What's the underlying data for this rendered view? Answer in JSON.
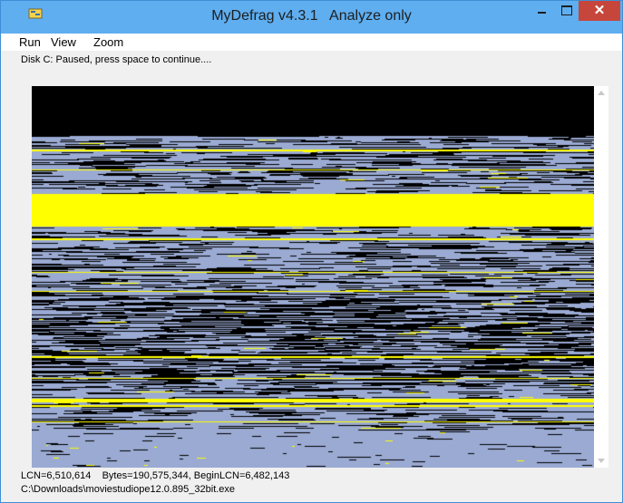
{
  "window": {
    "title": "MyDefrag v4.3.1   Analyze only",
    "close_glyph": "✕"
  },
  "menu": {
    "items": [
      "Run",
      "View",
      "Zoom"
    ]
  },
  "status": {
    "top": "Disk C:   Paused, press space to continue....",
    "lcn": "LCN=6,510,614    Bytes=190,575,344, BeginLCN=6,482,143",
    "file": "C:\\Downloads\\moviestudiope12.0.895_32bit.exe"
  },
  "colors": {
    "free": "#000000",
    "used": "#9aaad2",
    "highlight": "#ffff00",
    "titlebar": "#5eaef0",
    "close": "#c7463c"
  },
  "icons": {
    "app": "defrag-app-icon",
    "minimize": "minimize-icon",
    "maximize": "maximize-icon",
    "close": "close-icon"
  }
}
